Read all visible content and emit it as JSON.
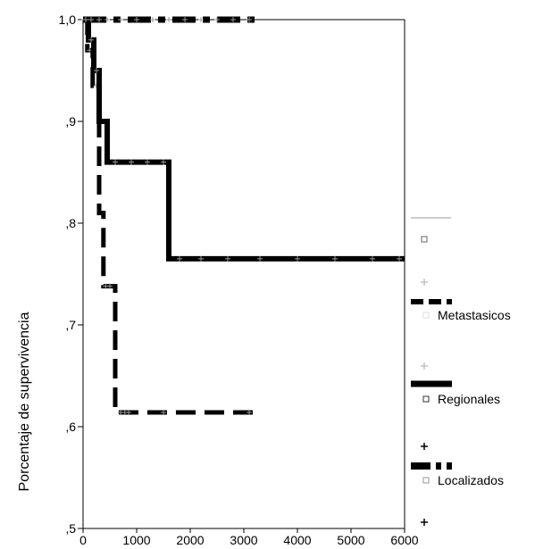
{
  "chart_data": {
    "type": "line",
    "title": "",
    "xlabel": "",
    "ylabel": "Porcentaje de supervivencia",
    "xlim": [
      0,
      6000
    ],
    "ylim": [
      0.5,
      1.0
    ],
    "x_ticks": [
      "0",
      "1000",
      "2000",
      "3000",
      "4000",
      "5000",
      "6000"
    ],
    "y_ticks": [
      ",5",
      ",6",
      ",7",
      ",8",
      ",9",
      "1,0"
    ],
    "grid": false,
    "legend_placement": "right",
    "series": [
      {
        "name": "Metastasicos",
        "style": "dashed",
        "color": "#000000",
        "steps": [
          [
            0,
            1.0
          ],
          [
            80,
            0.97
          ],
          [
            180,
            0.935
          ],
          [
            300,
            0.81
          ],
          [
            380,
            0.738
          ],
          [
            600,
            0.614
          ],
          [
            3200,
            0.614
          ]
        ],
        "censored_x": [
          20,
          60,
          120,
          250,
          420,
          500,
          700,
          780,
          850,
          1500,
          3100
        ]
      },
      {
        "name": "Regionales",
        "style": "solid",
        "color": "#000000",
        "steps": [
          [
            0,
            1.0
          ],
          [
            100,
            0.98
          ],
          [
            200,
            0.95
          ],
          [
            300,
            0.9
          ],
          [
            450,
            0.86
          ],
          [
            1600,
            0.765
          ],
          [
            6000,
            0.765
          ]
        ],
        "censored_x": [
          30,
          150,
          250,
          600,
          900,
          1200,
          1500,
          1800,
          2200,
          2700,
          3300,
          4000,
          4700,
          5400,
          5900
        ]
      },
      {
        "name": "Localizados",
        "style": "dash-dot",
        "color": "#000000",
        "steps": [
          [
            0,
            1.0
          ],
          [
            3200,
            1.0
          ]
        ],
        "censored_x": [
          50,
          150,
          300,
          450,
          700,
          1000,
          1300,
          1600,
          1900,
          2200,
          2500,
          2800,
          3100
        ]
      }
    ]
  }
}
